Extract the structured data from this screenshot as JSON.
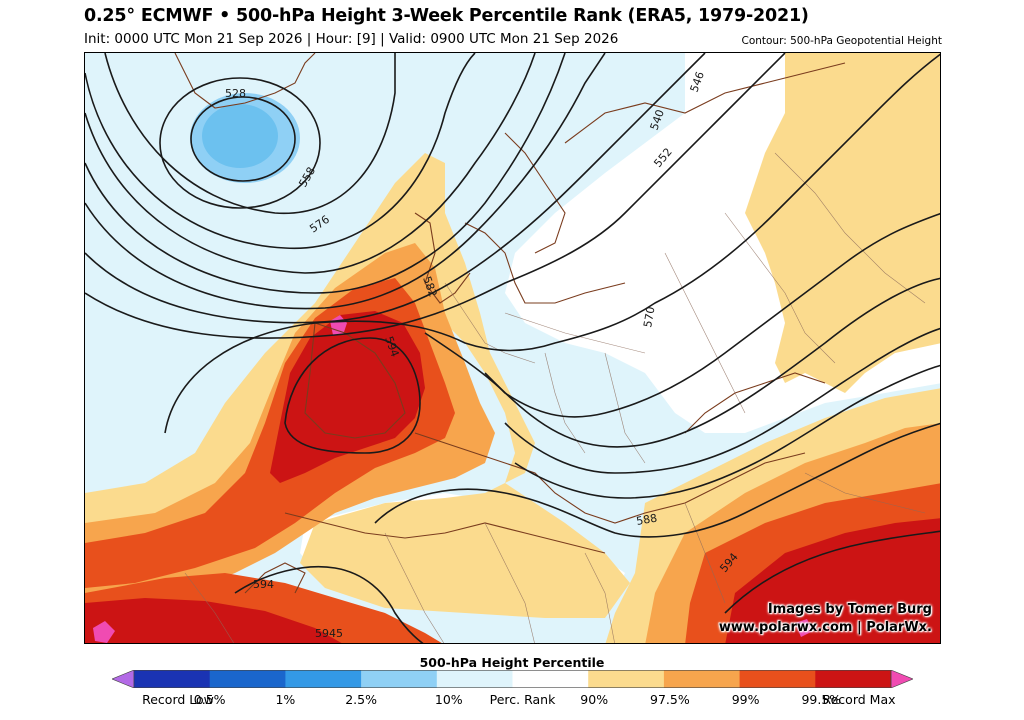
{
  "header": {
    "title": "0.25° ECMWF • 500-hPa Height 3-Week Percentile Rank (ERA5, 1979-2021)",
    "subtitle": "Init: 0000 UTC Mon 21 Sep 2026 | Hour: [9] | Valid: 0900 UTC Mon 21 Sep 2026",
    "contour_note": "Contour: 500-hPa Geopotential Height"
  },
  "map": {
    "contour_labels": [
      "528",
      "558",
      "576",
      "582",
      "594",
      "546",
      "540",
      "552",
      "570",
      "588",
      "594",
      "594",
      "5945"
    ],
    "credit_line1": "Images by Tomer Burg",
    "credit_line2": "www.polarwx.com | PolarWx."
  },
  "colorbar": {
    "title": "500-hPa Height Percentile",
    "labels": [
      "Record Low",
      "0.5%",
      "1%",
      "2.5%",
      "10%",
      "Perc. Rank",
      "90%",
      "97.5%",
      "99%",
      "99.5%",
      "Record Max"
    ],
    "colors": {
      "record_low": "#b36ae6",
      "p0_5": "#1a33b3",
      "p1": "#1a66cc",
      "p2_5": "#3399e6",
      "p10": "#8fd0f5",
      "p_low": "#dff4fb",
      "p_mid": "#ffffff",
      "p90": "#fbdb8e",
      "p97_5": "#f7a54d",
      "p99": "#e8501c",
      "p99_5": "#cc1414",
      "record_max": "#f04bb2"
    }
  }
}
